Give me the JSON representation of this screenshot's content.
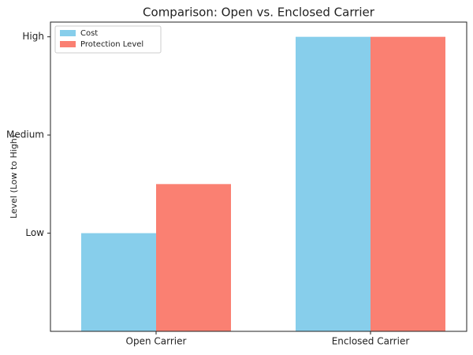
{
  "chart_data": {
    "type": "bar",
    "title": "Comparison: Open vs. Enclosed Carrier",
    "y_label": "Level (Low to High)",
    "categories": [
      "Open Carrier",
      "Enclosed Carrier"
    ],
    "series": [
      {
        "name": "Cost",
        "color": "#87ceeb",
        "values": [
          1,
          3
        ]
      },
      {
        "name": "Protection Level",
        "color": "#fa8072",
        "values": [
          1.5,
          3
        ]
      }
    ],
    "ylim": [
      0,
      3.15
    ],
    "yticks": [
      {
        "value": 1,
        "label": "Low"
      },
      {
        "value": 2,
        "label": "Medium"
      },
      {
        "value": 3,
        "label": "High"
      }
    ],
    "legend": "upper left"
  }
}
